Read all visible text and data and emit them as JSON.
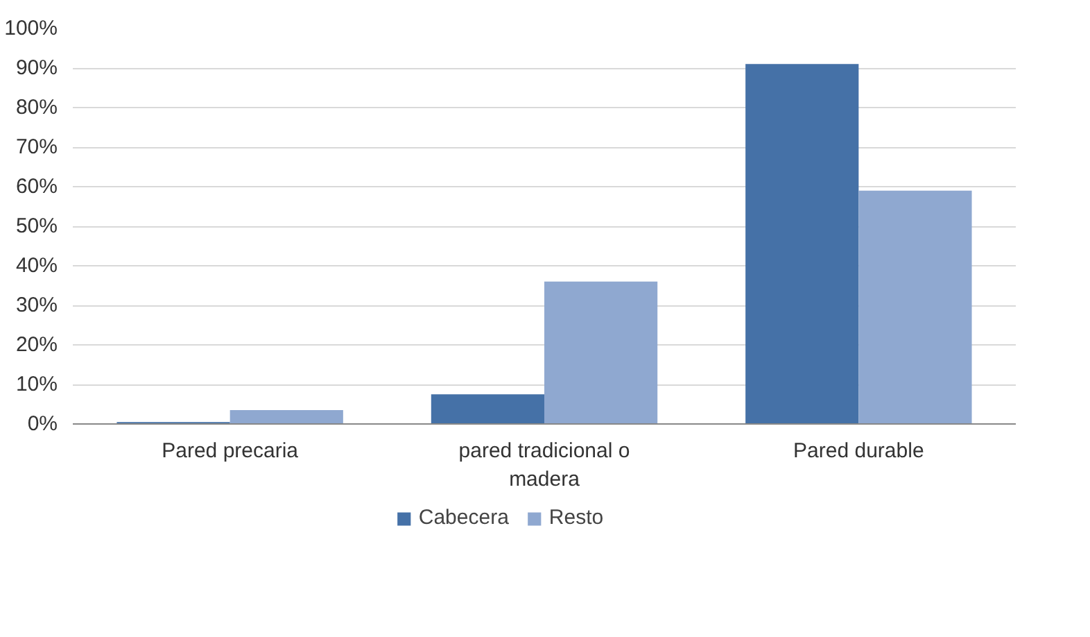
{
  "chart_data": {
    "type": "bar",
    "categories": [
      "Pared precaria",
      "pared tradicional o madera",
      "Pared durable"
    ],
    "series": [
      {
        "name": "Cabecera",
        "color": "#4571a7",
        "values": [
          0.5,
          7.5,
          91
        ]
      },
      {
        "name": "Resto",
        "color": "#8fa8d0",
        "values": [
          3.5,
          36,
          59
        ]
      }
    ],
    "ylim": [
      0,
      100
    ],
    "yticks": [
      {
        "value": 0,
        "label": "0%"
      },
      {
        "value": 10,
        "label": "10%"
      },
      {
        "value": 20,
        "label": "20%"
      },
      {
        "value": 30,
        "label": "30%"
      },
      {
        "value": 40,
        "label": "40%"
      },
      {
        "value": 50,
        "label": "50%"
      },
      {
        "value": 60,
        "label": "60%"
      },
      {
        "value": 70,
        "label": "70%"
      },
      {
        "value": 80,
        "label": "80%"
      },
      {
        "value": 90,
        "label": "90%"
      },
      {
        "value": 100,
        "label": "100%"
      }
    ],
    "grid": "y",
    "legend": "bottom"
  }
}
